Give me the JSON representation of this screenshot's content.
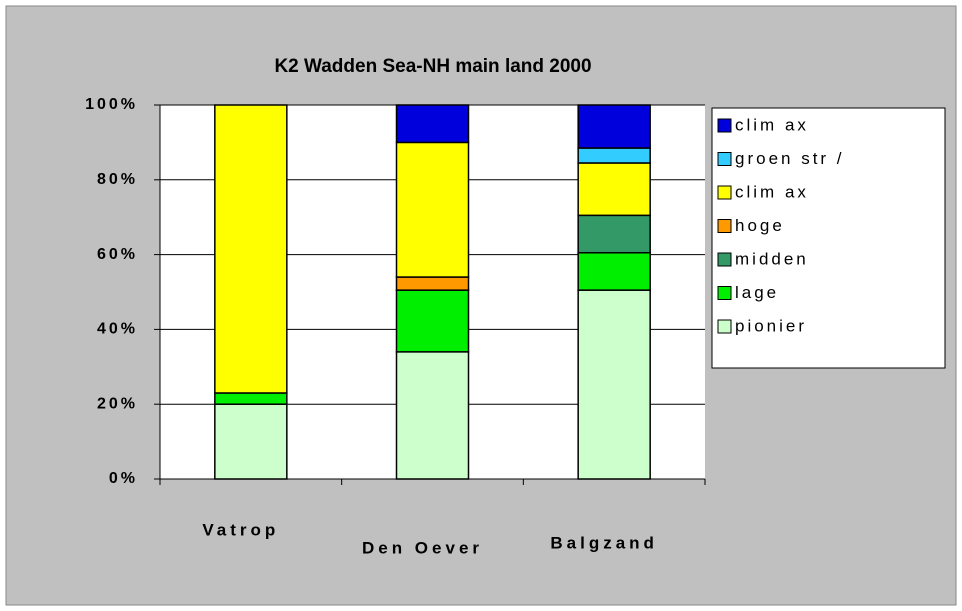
{
  "chart_data": {
    "type": "stacked_bar_100",
    "title": "K2 Wadden Sea-NH main land 2000",
    "categories": [
      "Vatrop",
      "Den Oever",
      "Balgzand"
    ],
    "series": [
      {
        "name": "pionier",
        "color": "#ccffcc",
        "values": [
          20,
          34,
          50.5
        ]
      },
      {
        "name": "lage",
        "color": "#00ee00",
        "values": [
          3,
          16.5,
          10
        ]
      },
      {
        "name": "midden",
        "color": "#339966",
        "values": [
          0,
          0,
          10
        ]
      },
      {
        "name": "hoge",
        "color": "#ff9900",
        "values": [
          0,
          3.5,
          0
        ]
      },
      {
        "name": "clim ax",
        "color": "#ffff00",
        "values": [
          77,
          36,
          14
        ]
      },
      {
        "name": "groen str /",
        "color": "#33ccff",
        "values": [
          0,
          0,
          4
        ]
      },
      {
        "name": "clim ax",
        "color": "#0000dd",
        "values": [
          0,
          10,
          11.5
        ]
      }
    ],
    "ylim": [
      0,
      100
    ],
    "yticks": [
      {
        "value": 0,
        "label": "0%"
      },
      {
        "value": 20,
        "label": "20%"
      },
      {
        "value": 40,
        "label": "40%"
      },
      {
        "value": 60,
        "label": "60%"
      },
      {
        "value": 80,
        "label": "80%"
      },
      {
        "value": 100,
        "label": "100%"
      }
    ],
    "grid": true,
    "legend": "right"
  }
}
